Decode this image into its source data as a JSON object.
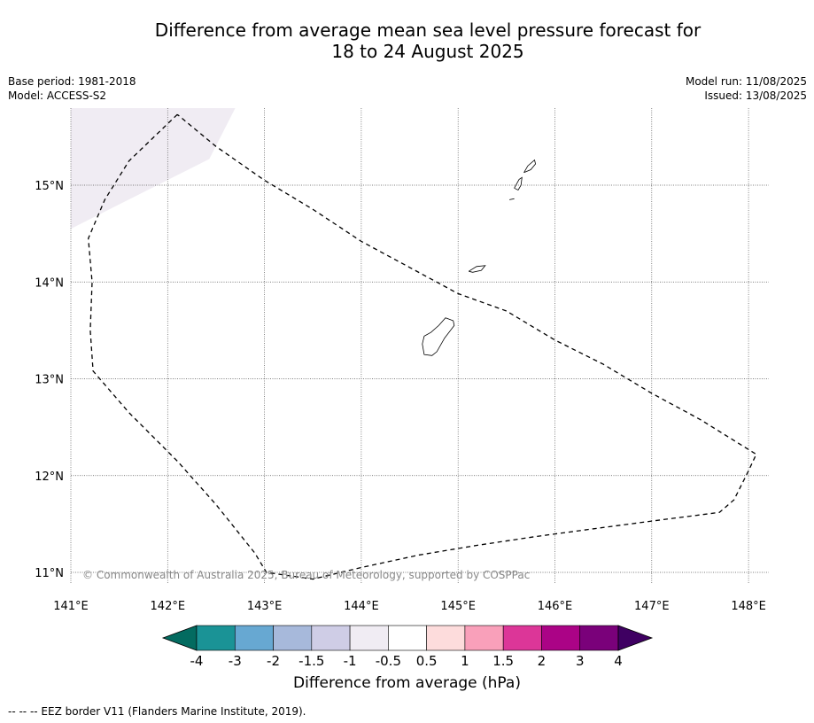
{
  "title_line1": "Difference from average mean sea level pressure forecast for",
  "title_line2": "18 to 24 August 2025",
  "meta": {
    "base_period": "Base period: 1981-2018",
    "model": "Model: ACCESS-S2",
    "model_run": "Model run: 11/08/2025",
    "issued": "Issued: 13/08/2025"
  },
  "map": {
    "lon_labels": [
      "141°E",
      "142°E",
      "143°E",
      "144°E",
      "145°E",
      "146°E",
      "147°E",
      "148°E"
    ],
    "lon_values": [
      141,
      142,
      143,
      144,
      145,
      146,
      147,
      148
    ],
    "lat_labels": [
      "15°N",
      "14°N",
      "13°N",
      "12°N",
      "11°N"
    ],
    "lat_values": [
      15,
      14,
      13,
      12,
      11
    ],
    "copyright": "© Commonwealth of Australia 2025, Bureau of Meteorology, supported by COSPPac",
    "anomaly_field": [
      {
        "category": "-1 to -0.5",
        "color": "#f0ecf3",
        "lon_lat": [
          [
            141.0,
            15.8
          ],
          [
            142.7,
            15.8
          ],
          [
            142.43,
            15.27
          ],
          [
            141.0,
            14.55
          ]
        ]
      }
    ],
    "eez_border": [
      [
        142.1,
        15.73
      ],
      [
        141.6,
        15.25
      ],
      [
        141.35,
        14.85
      ],
      [
        141.18,
        14.45
      ],
      [
        141.22,
        14.0
      ],
      [
        141.2,
        13.5
      ],
      [
        141.23,
        13.08
      ],
      [
        141.6,
        12.65
      ],
      [
        142.1,
        12.15
      ],
      [
        142.5,
        11.7
      ],
      [
        142.9,
        11.2
      ],
      [
        143.02,
        11.0
      ],
      [
        143.5,
        10.93
      ],
      [
        144.0,
        11.05
      ],
      [
        144.6,
        11.18
      ],
      [
        145.2,
        11.28
      ],
      [
        145.8,
        11.37
      ],
      [
        146.4,
        11.45
      ],
      [
        147.0,
        11.53
      ],
      [
        147.7,
        11.62
      ],
      [
        147.85,
        11.75
      ],
      [
        148.0,
        12.05
      ],
      [
        148.08,
        12.22
      ],
      [
        147.5,
        12.58
      ],
      [
        147.0,
        12.85
      ],
      [
        146.5,
        13.15
      ],
      [
        146.0,
        13.4
      ],
      [
        145.5,
        13.7
      ],
      [
        145.0,
        13.88
      ],
      [
        144.5,
        14.15
      ],
      [
        144.0,
        14.42
      ],
      [
        143.5,
        14.75
      ],
      [
        143.0,
        15.05
      ],
      [
        142.5,
        15.4
      ],
      [
        142.1,
        15.73
      ]
    ],
    "islands": [
      {
        "name": "Guam",
        "lon_lat": [
          [
            144.65,
            13.44
          ],
          [
            144.72,
            13.48
          ],
          [
            144.8,
            13.55
          ],
          [
            144.87,
            13.63
          ],
          [
            144.95,
            13.6
          ],
          [
            144.96,
            13.55
          ],
          [
            144.86,
            13.42
          ],
          [
            144.78,
            13.28
          ],
          [
            144.73,
            13.24
          ],
          [
            144.65,
            13.25
          ],
          [
            144.63,
            13.36
          ],
          [
            144.65,
            13.44
          ]
        ]
      },
      {
        "name": "Rota",
        "lon_lat": [
          [
            145.11,
            14.11
          ],
          [
            145.19,
            14.16
          ],
          [
            145.28,
            14.17
          ],
          [
            145.24,
            14.12
          ],
          [
            145.15,
            14.1
          ],
          [
            145.11,
            14.11
          ]
        ]
      },
      {
        "name": "Tinian",
        "lon_lat": [
          [
            145.58,
            14.97
          ],
          [
            145.63,
            15.06
          ],
          [
            145.66,
            15.08
          ],
          [
            145.65,
            15.0
          ],
          [
            145.62,
            14.95
          ],
          [
            145.58,
            14.97
          ]
        ]
      },
      {
        "name": "Saipan",
        "lon_lat": [
          [
            145.68,
            15.13
          ],
          [
            145.72,
            15.2
          ],
          [
            145.79,
            15.26
          ],
          [
            145.8,
            15.22
          ],
          [
            145.75,
            15.16
          ],
          [
            145.68,
            15.13
          ]
        ]
      },
      {
        "name": "Aguijan",
        "lon_lat": [
          [
            145.53,
            14.85
          ],
          [
            145.58,
            14.86
          ]
        ]
      }
    ]
  },
  "colorbar": {
    "title": "Difference from average (hPa)",
    "tick_labels": [
      "-4",
      "-3",
      "-2",
      "-1.5",
      "-1",
      "-0.5",
      "0.5",
      "1",
      "1.5",
      "2",
      "3",
      "4"
    ],
    "below_color": "#036b60",
    "above_color": "#3f0062",
    "colors": [
      "#1a9396",
      "#67a8d2",
      "#a7b9db",
      "#cfcde6",
      "#f0ecf3",
      "#ffffff",
      "#fddcdc",
      "#f9a0ba",
      "#dc3698",
      "#ab0386",
      "#7a017a"
    ]
  },
  "footer": "--  --  -- EEZ border V11 (Flanders Marine Institute, 2019)."
}
